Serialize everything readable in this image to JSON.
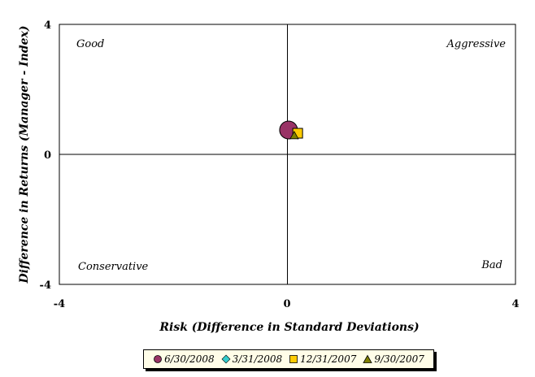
{
  "chart_data": {
    "type": "scatter",
    "title": "",
    "xlabel": "Risk (Difference in Standard Deviations)",
    "ylabel": "Difference in Returns (Manager - Index)",
    "xlim": [
      -4,
      4
    ],
    "ylim": [
      -4,
      4
    ],
    "x_ticks": [
      "-4",
      "0",
      "4"
    ],
    "y_ticks": [
      "4",
      "0",
      "-4"
    ],
    "grid": false,
    "legend_position": "bottom",
    "quadrant_labels": {
      "top_left": "Good",
      "top_right": "Aggressive",
      "bottom_left": "Conservative",
      "bottom_right": "Bad"
    },
    "series": [
      {
        "name": "6/30/2008",
        "marker": "circle",
        "color": "#993366",
        "x": 0.02,
        "y": 0.75
      },
      {
        "name": "3/31/2008",
        "marker": "diamond",
        "color": "#33cccc",
        "x": 0.18,
        "y": 0.62
      },
      {
        "name": "12/31/2007",
        "marker": "square",
        "color": "#ffcc00",
        "x": 0.18,
        "y": 0.65
      },
      {
        "name": "9/30/2007",
        "marker": "triangle",
        "color": "#808000",
        "x": 0.12,
        "y": 0.58
      }
    ]
  }
}
